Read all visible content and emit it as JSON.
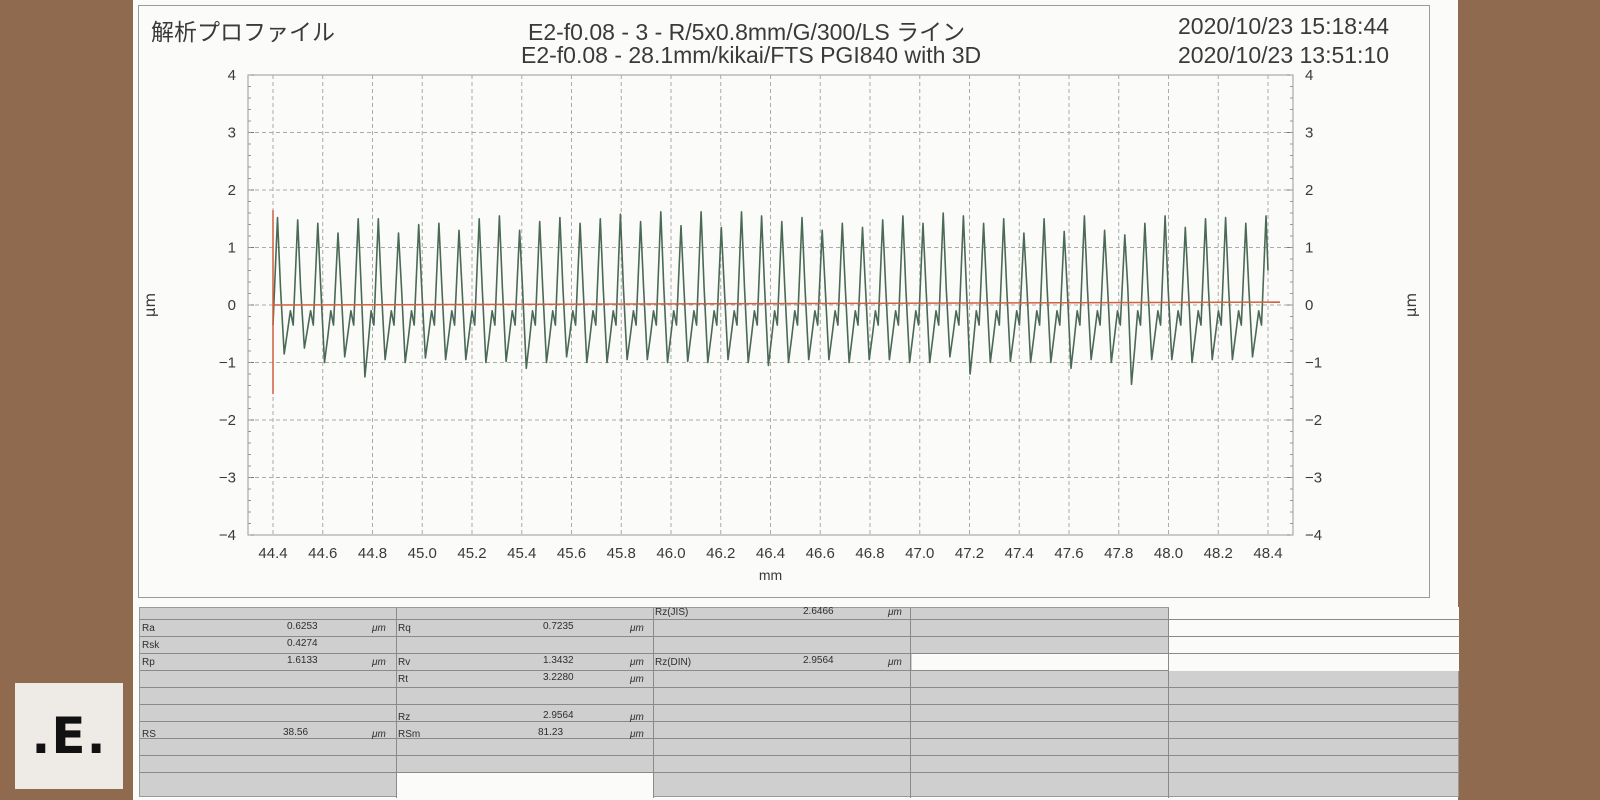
{
  "header": {
    "title": "解析プロファイル",
    "line1": "E2-f0.08 - 3 - R/5x0.8mm/G/300/LS ライン",
    "line2": "E2-f0.08 - 28.1mm/kikai/FTS PGI840 with 3D",
    "date1": "2020/10/23 15:18:44",
    "date2": "2020/10/23 13:51:10"
  },
  "chart_data": {
    "type": "line",
    "title": "解析プロファイル",
    "xlabel": "mm",
    "ylabel": "μm",
    "xlim": [
      44.4,
      48.4
    ],
    "ylim": [
      -4,
      4
    ],
    "grid": true,
    "x_ticks": [
      "44.4",
      "44.6",
      "44.8",
      "45.0",
      "45.2",
      "45.4",
      "45.6",
      "45.8",
      "46.0",
      "46.2",
      "46.4",
      "46.6",
      "46.8",
      "47.0",
      "47.2",
      "47.4",
      "47.6",
      "47.8",
      "48.0",
      "48.2",
      "48.4"
    ],
    "y_ticks": [
      "4",
      "3",
      "2",
      "1",
      "0",
      "−1",
      "−2",
      "−3",
      "−4"
    ],
    "colors": {
      "profile": "#4a6a55",
      "reference": "#d06040"
    },
    "series": [
      {
        "key": "profile",
        "period_mm": 0.0811,
        "peaks_um": [
          1.52,
          1.48,
          1.42,
          1.25,
          1.5,
          1.5,
          1.25,
          1.4,
          1.42,
          1.3,
          1.5,
          1.55,
          1.3,
          1.45,
          1.52,
          1.42,
          1.5,
          1.58,
          1.45,
          1.62,
          1.38,
          1.62,
          1.35,
          1.62,
          1.55,
          1.45,
          1.52,
          1.3,
          1.42,
          1.35,
          1.48,
          1.55,
          1.42,
          1.6,
          1.55,
          1.42,
          1.5,
          1.25,
          1.5,
          1.28,
          1.55,
          1.3,
          1.22,
          1.42,
          1.55,
          1.35,
          1.5,
          1.52,
          1.42,
          1.55
        ],
        "valleys_um": [
          -0.85,
          -0.75,
          -1.0,
          -0.9,
          -1.25,
          -0.95,
          -1.0,
          -0.92,
          -0.95,
          -0.95,
          -1.0,
          -0.98,
          -1.1,
          -1.0,
          -0.9,
          -1.0,
          -1.0,
          -0.95,
          -0.95,
          -1.0,
          -0.98,
          -1.0,
          -0.95,
          -1.0,
          -1.05,
          -1.0,
          -0.95,
          -0.95,
          -1.0,
          -0.95,
          -0.95,
          -1.0,
          -1.0,
          -0.9,
          -1.2,
          -1.0,
          -0.98,
          -1.0,
          -1.0,
          -1.1,
          -0.95,
          -1.0,
          -1.38,
          -0.95,
          -0.95,
          -1.0,
          -0.95,
          -0.95,
          -0.9,
          -0.9
        ]
      },
      {
        "key": "reference",
        "x": [
          44.4,
          48.4
        ],
        "y": [
          0,
          0.05
        ]
      }
    ],
    "marker": {
      "x": 44.4,
      "y_range": [
        -1.55,
        1.65
      ]
    }
  },
  "stats": {
    "ra_label": "Ra",
    "ra_value": "0.6253",
    "rsk_label": "Rsk",
    "rsk_value": "0.4274",
    "rp_label": "Rp",
    "rp_value": "1.6133",
    "rs_label": "RS",
    "rs_value": "38.56",
    "rq_label": "Rq",
    "rq_value": "0.7235",
    "rv_label": "Rv",
    "rv_value": "1.3432",
    "rt_label": "Rt",
    "rt_value": "3.2280",
    "rz_label": "Rz",
    "rz_value": "2.9564",
    "rsm_label": "RSm",
    "rsm_value": "81.23",
    "rzjis_label": "Rz(JIS)",
    "rzjis_value": "2.6466",
    "rzdin_label": "Rz(DIN)",
    "rzdin_value": "2.9564",
    "unit": "μm"
  },
  "logo": {
    "text": ".E."
  }
}
